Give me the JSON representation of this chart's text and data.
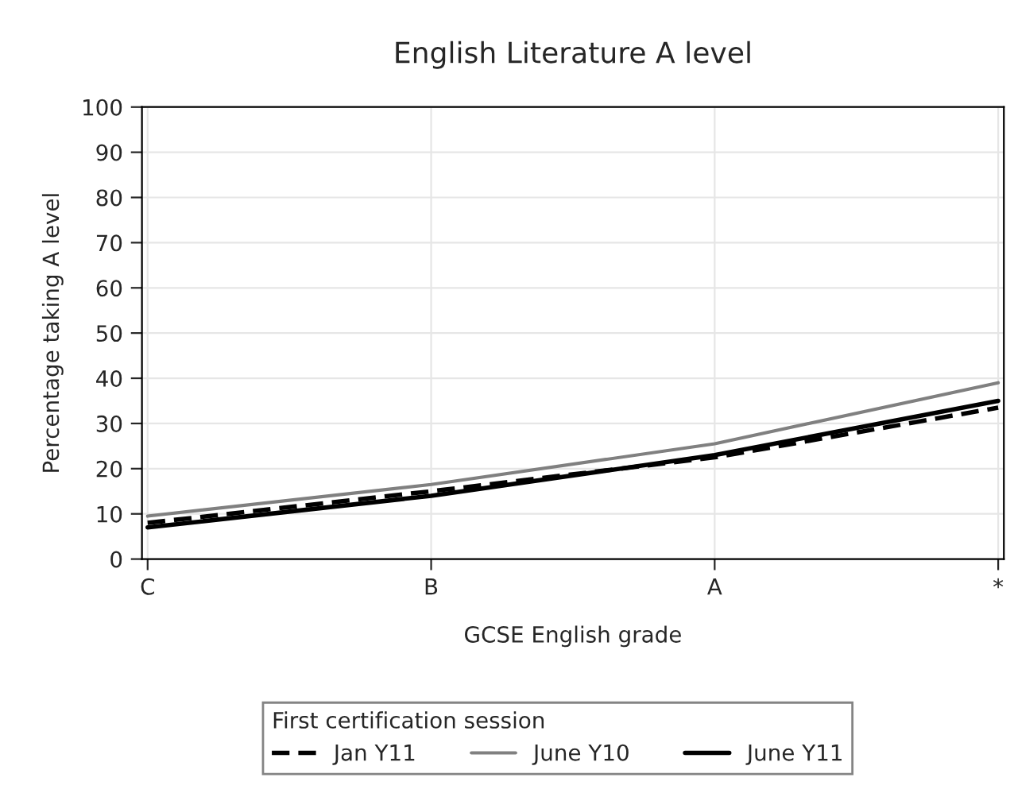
{
  "chart_data": {
    "type": "line",
    "title": "English Literature A level",
    "xlabel": "GCSE English grade",
    "ylabel": "Percentage taking A level",
    "legend_title": "First certification session",
    "categories": [
      "C",
      "B",
      "A",
      "*"
    ],
    "series": [
      {
        "name": "Jan Y11",
        "color": "#000000",
        "line_style": "dashed",
        "values": [
          8,
          15,
          22.5,
          33.5
        ]
      },
      {
        "name": "June Y10",
        "color": "#808080",
        "line_style": "solid",
        "values": [
          9.5,
          16.5,
          25.5,
          39
        ]
      },
      {
        "name": "June Y11",
        "color": "#000000",
        "line_style": "solid",
        "values": [
          7,
          14,
          23,
          35
        ]
      }
    ],
    "ylim": [
      0,
      100
    ],
    "yticks": [
      0,
      10,
      20,
      30,
      40,
      50,
      60,
      70,
      80,
      90,
      100
    ],
    "grid": true,
    "legend": "bottom",
    "marker": "none"
  }
}
